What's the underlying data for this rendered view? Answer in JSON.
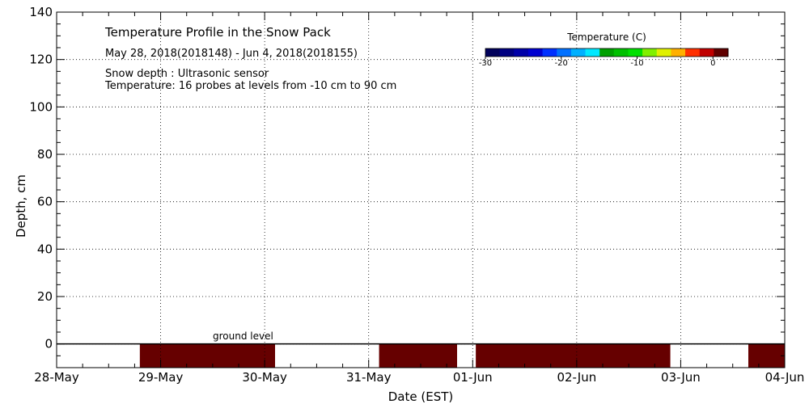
{
  "chart_data": {
    "type": "heatmap",
    "title": "Temperature Profile in the Snow Pack",
    "subtitle": "May 28, 2018(2018148) - Jun  4, 2018(2018155)",
    "notes": [
      "Snow depth : Ultrasonic sensor",
      "Temperature: 16 probes at levels from -10 cm to 90 cm"
    ],
    "xlabel": "Date (EST)",
    "ylabel": "Depth, cm",
    "x_ticks": [
      "28-May",
      "29-May",
      "30-May",
      "31-May",
      "01-Jun",
      "02-Jun",
      "03-Jun",
      "04-Jun"
    ],
    "x_range_days": [
      0,
      7
    ],
    "ylim": [
      -10,
      140
    ],
    "y_ticks": [
      0,
      20,
      40,
      60,
      80,
      100,
      120,
      140
    ],
    "grid": "dotted",
    "annotation": "ground level",
    "snow_depth_cm": 0,
    "heat_blocks": [
      {
        "start_day": 0.8,
        "end_day": 2.1,
        "from_cm": -10,
        "to_cm": 0
      },
      {
        "start_day": 3.1,
        "end_day": 3.85,
        "from_cm": -10,
        "to_cm": 0
      },
      {
        "start_day": 4.03,
        "end_day": 5.9,
        "from_cm": -10,
        "to_cm": 0
      },
      {
        "start_day": 6.65,
        "end_day": 7.0,
        "from_cm": -10,
        "to_cm": 0
      }
    ],
    "block_color": "#660000",
    "colorbar": {
      "title": "Temperature (C)",
      "tick_labels": [
        "-30",
        "-20",
        "-10",
        "0"
      ],
      "tick_values": [
        -30,
        -20,
        -10,
        0
      ],
      "range": [
        -30,
        2
      ],
      "colors": [
        "#00005a",
        "#000080",
        "#0000a8",
        "#0000d0",
        "#0030ff",
        "#0070ff",
        "#00b0ff",
        "#00e8ff",
        "#00a000",
        "#00c000",
        "#00e000",
        "#80f000",
        "#e0f000",
        "#ffb000",
        "#ff3000",
        "#c00000",
        "#600000"
      ]
    }
  }
}
